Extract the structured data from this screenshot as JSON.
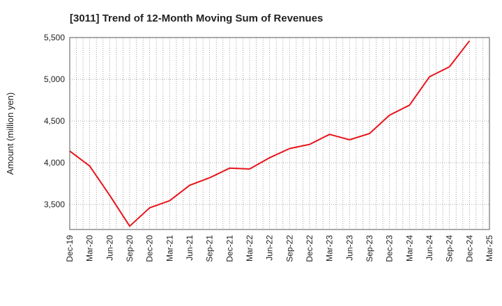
{
  "chart_data": {
    "type": "line",
    "title": "[3011]  Trend of 12-Month Moving Sum of Revenues",
    "xlabel": "",
    "ylabel": "Amount (million yen)",
    "ylim": [
      3200,
      5500
    ],
    "yticks": [
      3500,
      4000,
      4500,
      5000,
      5500
    ],
    "ytick_labels": [
      "3,500",
      "4,000",
      "4,500",
      "5,000",
      "5,500"
    ],
    "x_tick_labels": [
      "Dec-19",
      "Mar-20",
      "Jun-20",
      "Sep-20",
      "Dec-20",
      "Mar-21",
      "Jun-21",
      "Sep-21",
      "Dec-21",
      "Mar-22",
      "Jun-22",
      "Sep-22",
      "Dec-22",
      "Mar-23",
      "Jun-23",
      "Sep-23",
      "Dec-23",
      "Mar-24",
      "Jun-24",
      "Sep-24",
      "Dec-24",
      "Mar-25"
    ],
    "grid": true,
    "series": [
      {
        "color": "#e8141b",
        "x": [
          "Dec-19",
          "Mar-20",
          "Jun-20",
          "Sep-20",
          "Dec-20",
          "Mar-21",
          "Jun-21",
          "Sep-21",
          "Dec-21",
          "Mar-22",
          "Jun-22",
          "Sep-22",
          "Dec-22",
          "Mar-23",
          "Jun-23",
          "Sep-23",
          "Dec-23",
          "Mar-24",
          "Jun-24",
          "Sep-24",
          "Dec-24"
        ],
        "values": [
          4140,
          3960,
          3610,
          3240,
          3460,
          3545,
          3730,
          3820,
          3935,
          3925,
          4060,
          4170,
          4220,
          4340,
          4275,
          4350,
          4570,
          4690,
          5030,
          5150,
          5460
        ]
      }
    ]
  }
}
